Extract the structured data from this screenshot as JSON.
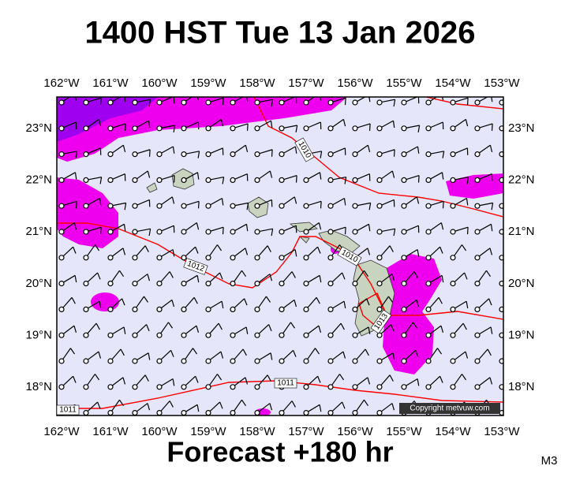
{
  "title": "1400 HST Tue 13 Jan 2026",
  "footer": "Forecast +180 hr",
  "model": "M3",
  "copyright": "Copyright metvuw.com",
  "lon_labels": [
    "162°W",
    "161°W",
    "160°W",
    "159°W",
    "158°W",
    "157°W",
    "156°W",
    "155°W",
    "154°W",
    "153°W"
  ],
  "lat_labels": [
    "23°N",
    "22°N",
    "21°N",
    "20°N",
    "19°N",
    "18°N"
  ],
  "isobar_labels": [
    "1010",
    "1012",
    "1010",
    "1013",
    "1011",
    "1011"
  ]
}
